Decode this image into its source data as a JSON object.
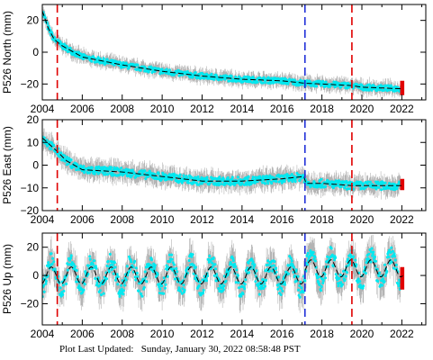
{
  "footer": {
    "label": "Plot Last Updated:",
    "value": "Sunday, January 30, 2022 08:58:48 PST"
  },
  "colors": {
    "error_bars": "#b4b4b4",
    "data": "#00e8f0",
    "model": "#000000",
    "recent": "#e00000",
    "event_red": "#e00000",
    "event_blue": "#1e2ed8"
  },
  "chart_data": [
    {
      "type": "line",
      "ylabel": "P526 North (mm)",
      "xlim": [
        2004,
        2023.2
      ],
      "ylim": [
        -30,
        30
      ],
      "xticks": [
        2004,
        2006,
        2008,
        2010,
        2012,
        2014,
        2016,
        2018,
        2020,
        2022
      ],
      "xtick_labels": [
        "2004",
        "2006",
        "2008",
        "2010",
        "2012",
        "2014",
        "2016",
        "2018",
        "2020",
        "2022"
      ],
      "yticks": [
        -20,
        0,
        20
      ],
      "ytick_labels": [
        "−20",
        "0",
        "20"
      ],
      "vlines": [
        {
          "x": 2004.75,
          "color": "red"
        },
        {
          "x": 2017.15,
          "color": "blue"
        },
        {
          "x": 2019.5,
          "color": "red"
        }
      ],
      "model": [
        [
          2004,
          26
        ],
        [
          2004.3,
          15
        ],
        [
          2004.6,
          8
        ],
        [
          2005,
          4
        ],
        [
          2006,
          -3
        ],
        [
          2008,
          -8
        ],
        [
          2010,
          -12
        ],
        [
          2012,
          -15
        ],
        [
          2014,
          -17
        ],
        [
          2016,
          -18
        ],
        [
          2017.15,
          -19.5
        ],
        [
          2018,
          -20
        ],
        [
          2019.5,
          -21
        ],
        [
          2020,
          -22
        ],
        [
          2022,
          -23
        ]
      ],
      "recent_range": [
        -27,
        -18
      ]
    },
    {
      "type": "line",
      "ylabel": "P526 East (mm)",
      "xlim": [
        2004,
        2023.2
      ],
      "ylim": [
        -20,
        20
      ],
      "xticks": [
        2004,
        2006,
        2008,
        2010,
        2012,
        2014,
        2016,
        2018,
        2020,
        2022
      ],
      "xtick_labels": [
        "2004",
        "2006",
        "2008",
        "2010",
        "2012",
        "2014",
        "2016",
        "2018",
        "2020",
        "2022"
      ],
      "yticks": [
        -20,
        -10,
        0,
        10,
        20
      ],
      "ytick_labels": [
        "−20",
        "−10",
        "0",
        "10",
        "20"
      ],
      "vlines": [
        {
          "x": 2004.75,
          "color": "red"
        },
        {
          "x": 2017.15,
          "color": "blue"
        },
        {
          "x": 2019.5,
          "color": "red"
        }
      ],
      "model": [
        [
          2004,
          12
        ],
        [
          2004.5,
          8
        ],
        [
          2004.75,
          6
        ],
        [
          2005.2,
          2
        ],
        [
          2006,
          -2
        ],
        [
          2008,
          -3
        ],
        [
          2010,
          -5
        ],
        [
          2012,
          -7
        ],
        [
          2014,
          -7
        ],
        [
          2016,
          -6
        ],
        [
          2017.1,
          -5
        ],
        [
          2017.2,
          -8
        ],
        [
          2018,
          -8
        ],
        [
          2019.5,
          -9
        ],
        [
          2020,
          -9
        ],
        [
          2022,
          -9
        ]
      ],
      "recent_range": [
        -11,
        -6
      ]
    },
    {
      "type": "line",
      "ylabel": "P526 Up (mm)",
      "xlim": [
        2004,
        2023.2
      ],
      "ylim": [
        -35,
        30
      ],
      "xticks": [
        2004,
        2006,
        2008,
        2010,
        2012,
        2014,
        2016,
        2018,
        2020,
        2022
      ],
      "xtick_labels": [
        "2004",
        "2006",
        "2008",
        "2010",
        "2012",
        "2014",
        "2016",
        "2018",
        "2020",
        "2022"
      ],
      "yticks": [
        -20,
        0,
        20
      ],
      "ytick_labels": [
        "−20",
        "0",
        "20"
      ],
      "vlines": [
        {
          "x": 2004.75,
          "color": "red"
        },
        {
          "x": 2017.15,
          "color": "blue"
        },
        {
          "x": 2019.5,
          "color": "red"
        }
      ],
      "model": [
        [
          2004,
          0
        ],
        [
          2022,
          0
        ]
      ],
      "seasonal_amplitude": 6,
      "step_at": 2017.15,
      "step_offset": 5,
      "recent_range": [
        -10,
        6
      ]
    }
  ]
}
